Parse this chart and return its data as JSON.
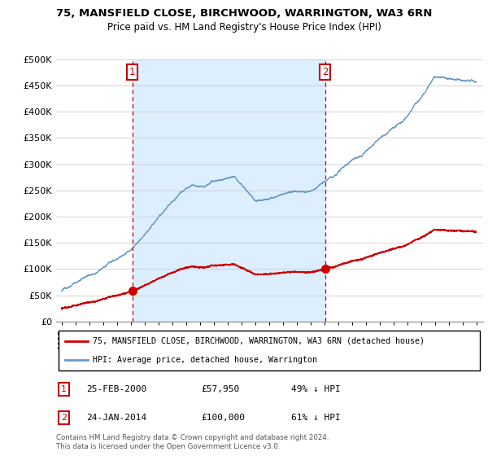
{
  "title1": "75, MANSFIELD CLOSE, BIRCHWOOD, WARRINGTON, WA3 6RN",
  "title2": "Price paid vs. HM Land Registry's House Price Index (HPI)",
  "legend_line1": "75, MANSFIELD CLOSE, BIRCHWOOD, WARRINGTON, WA3 6RN (detached house)",
  "legend_line2": "HPI: Average price, detached house, Warrington",
  "footnote": "Contains HM Land Registry data © Crown copyright and database right 2024.\nThis data is licensed under the Open Government Licence v3.0.",
  "sale1_date": "25-FEB-2000",
  "sale1_price": 57950,
  "sale1_hpi": "49% ↓ HPI",
  "sale2_date": "24-JAN-2014",
  "sale2_price": 100000,
  "sale2_hpi": "61% ↓ HPI",
  "sale1_year": 2000.12,
  "sale2_year": 2014.06,
  "red_color": "#cc0000",
  "blue_color": "#6699cc",
  "shade_color": "#ddeeff",
  "background_color": "#ffffff",
  "grid_color": "#cccccc",
  "ylim": [
    0,
    500000
  ],
  "yticks": [
    0,
    50000,
    100000,
    150000,
    200000,
    250000,
    300000,
    350000,
    400000,
    450000,
    500000
  ],
  "ytick_labels": [
    "£0",
    "£50K",
    "£100K",
    "£150K",
    "£200K",
    "£250K",
    "£300K",
    "£350K",
    "£400K",
    "£450K",
    "£500K"
  ],
  "xstart": 1995,
  "xend": 2025
}
